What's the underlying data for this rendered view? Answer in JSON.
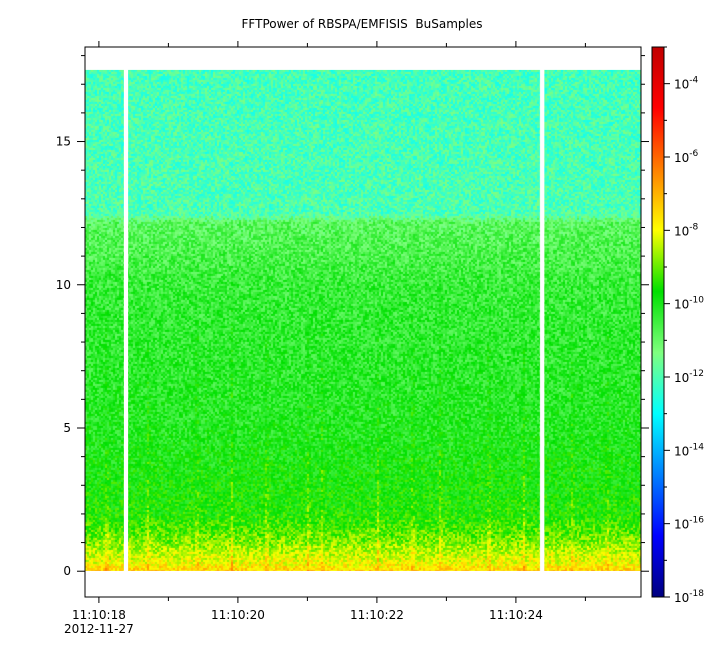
{
  "chart_data": {
    "type": "heatmap",
    "title": "FFTPower of RBSPA/EMFISIS  BuSamples",
    "xlabel": "",
    "ylabel": "",
    "x_ticks": [
      "11:10:18",
      "11:10:20",
      "11:10:22",
      "11:10:24"
    ],
    "x_tick_sublabel": "2012-11-27",
    "x_range_seconds": [
      17.8,
      25.8
    ],
    "x_major_tick_seconds": [
      18,
      20,
      22,
      24
    ],
    "x_minor_tick_seconds": [
      19,
      21,
      23,
      25
    ],
    "y_ticks": [
      0,
      5,
      10,
      15
    ],
    "ylim": [
      -0.9,
      18.3
    ],
    "data_y_max": 17.5,
    "gaps_seconds": [
      18.39,
      24.38
    ],
    "colorbar": {
      "scale": "log",
      "range": [
        1e-18,
        0.001
      ],
      "tick_exponents": [
        -18,
        -16,
        -14,
        -12,
        -10,
        -8,
        -6,
        -4
      ],
      "tick_base": "10",
      "colormap": [
        "#00007f",
        "#0000ff",
        "#007fff",
        "#00ffff",
        "#7fff7f",
        "#00e000",
        "#ffff00",
        "#ff7f00",
        "#ff0000",
        "#c00000"
      ]
    },
    "power_profile": [
      {
        "y": 0.0,
        "log_power": -7.3
      },
      {
        "y": 0.3,
        "log_power": -8.0
      },
      {
        "y": 1.0,
        "log_power": -8.8
      },
      {
        "y": 2.0,
        "log_power": -9.6
      },
      {
        "y": 5.0,
        "log_power": -10.1
      },
      {
        "y": 10.0,
        "log_power": -10.4
      },
      {
        "y": 12.2,
        "log_power": -10.9
      },
      {
        "y": 12.5,
        "log_power": -12.0
      },
      {
        "y": 17.5,
        "log_power": -12.1
      }
    ],
    "bursts_seconds": [
      18.1,
      18.7,
      19.4,
      19.9,
      20.4,
      21.0,
      21.2,
      22.0,
      22.5,
      22.9,
      23.6,
      24.1,
      24.8,
      25.3
    ]
  }
}
